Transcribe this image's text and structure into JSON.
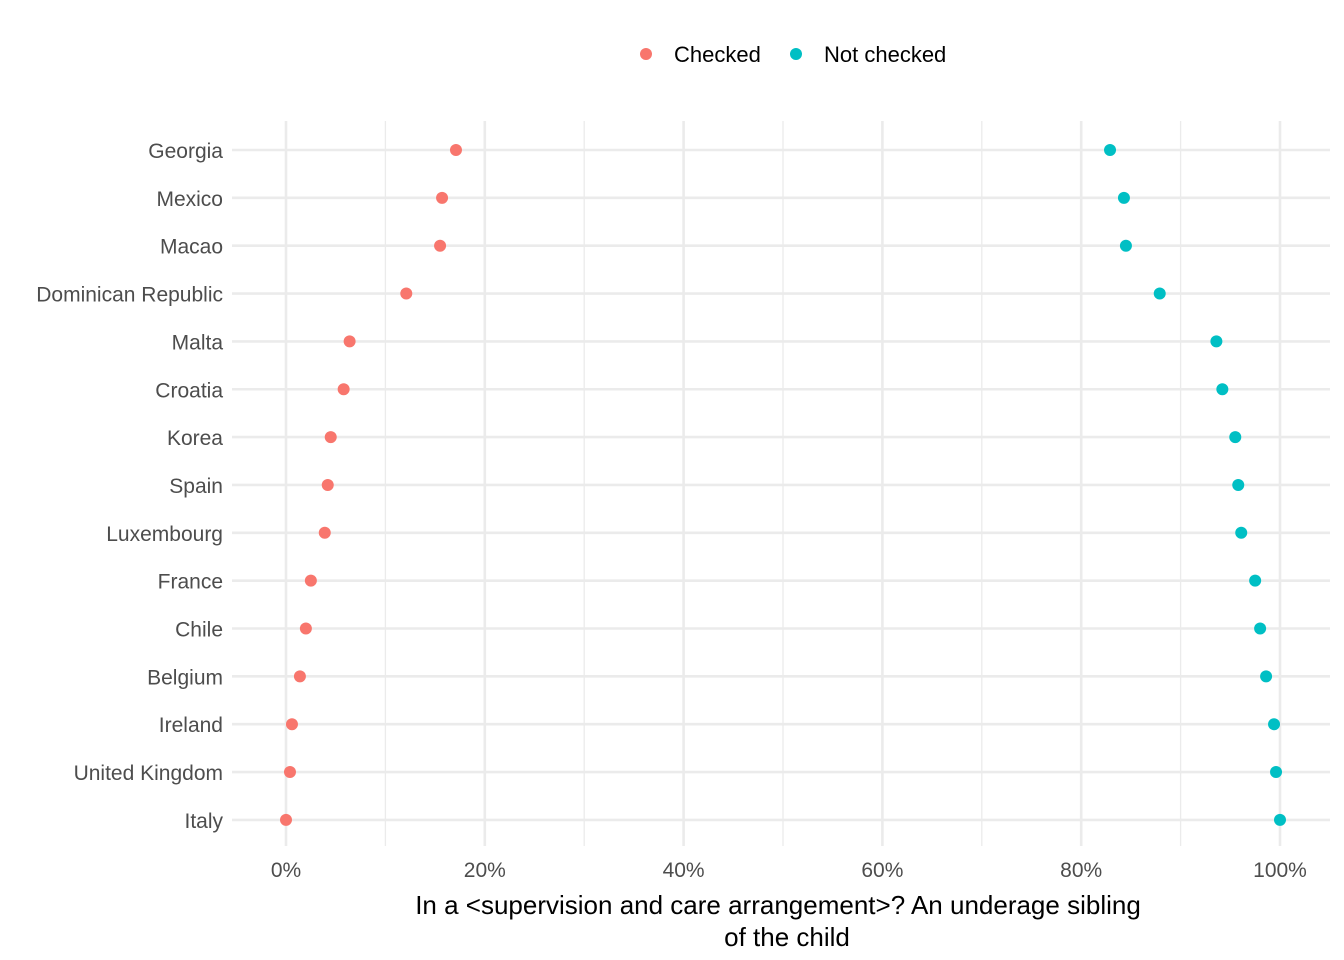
{
  "chart_data": {
    "type": "scatter",
    "xlabel_lines": [
      "In a <supervision and care arrangement>? An underage sibling",
      "of the child"
    ],
    "ylabel": "",
    "xlim": [
      -0.05,
      1.04
    ],
    "x_ticks": [
      {
        "value": 0,
        "label": "0%"
      },
      {
        "value": 0.2,
        "label": "20%"
      },
      {
        "value": 0.4,
        "label": "40%"
      },
      {
        "value": 0.6,
        "label": "60%"
      },
      {
        "value": 0.8,
        "label": "80%"
      },
      {
        "value": 1.0,
        "label": "100%"
      }
    ],
    "grid": true,
    "legend_position": "top",
    "categories": [
      "Georgia",
      "Mexico",
      "Macao",
      "Dominican Republic",
      "Malta",
      "Croatia",
      "Korea",
      "Spain",
      "Luxembourg",
      "France",
      "Chile",
      "Belgium",
      "Ireland",
      "United Kingdom",
      "Italy"
    ],
    "series": [
      {
        "name": "Checked",
        "color": "#F8766D",
        "values": [
          0.171,
          0.157,
          0.155,
          0.121,
          0.064,
          0.058,
          0.045,
          0.042,
          0.039,
          0.025,
          0.02,
          0.014,
          0.006,
          0.004,
          0.0
        ]
      },
      {
        "name": "Not checked",
        "color": "#00BFC4",
        "values": [
          0.829,
          0.843,
          0.845,
          0.879,
          0.936,
          0.942,
          0.955,
          0.958,
          0.961,
          0.975,
          0.98,
          0.986,
          0.994,
          0.996,
          1.0
        ]
      }
    ]
  }
}
